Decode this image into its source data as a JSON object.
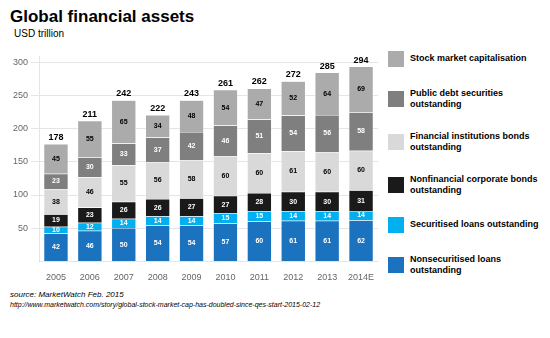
{
  "chart_data": {
    "type": "bar",
    "title": "Global financial assets",
    "subtitle": "USD trillion",
    "categories": [
      "2005",
      "2006",
      "2007",
      "2008",
      "2009",
      "2010",
      "2011",
      "2012",
      "2013",
      "2014E"
    ],
    "series": [
      {
        "name": "Nonsecuritised loans\noutstanding",
        "color": "#1B72BE",
        "values": [
          42,
          46,
          50,
          54,
          54,
          57,
          60,
          61,
          61,
          62
        ]
      },
      {
        "name": "Securitised loans outstanding",
        "color": "#00B0F0",
        "values": [
          10,
          12,
          14,
          14,
          14,
          15,
          15,
          14,
          14,
          14
        ]
      },
      {
        "name": "Nonfinancial corporate bonds\noutstanding",
        "color": "#1A1A1A",
        "values": [
          19,
          23,
          26,
          26,
          27,
          27,
          28,
          30,
          30,
          31
        ]
      },
      {
        "name": "Financial institutions bonds\noutstanding",
        "color": "#D9D9D9",
        "values": [
          38,
          46,
          55,
          56,
          58,
          60,
          60,
          61,
          60,
          60
        ]
      },
      {
        "name": "Public debt securities\noutstanding",
        "color": "#7F7F7F",
        "values": [
          23,
          30,
          33,
          37,
          42,
          46,
          51,
          54,
          56,
          58
        ]
      },
      {
        "name": "Stock market capitalisation",
        "color": "#ABABAB",
        "values": [
          45,
          55,
          65,
          34,
          48,
          54,
          47,
          52,
          64,
          69
        ]
      }
    ],
    "totals": [
      178,
      211,
      242,
      222,
      243,
      261,
      262,
      272,
      285,
      294
    ],
    "stacked": true,
    "data_labels": true,
    "ylim": [
      0,
      310
    ],
    "yticks": [
      50,
      100,
      150,
      200,
      250,
      300
    ],
    "grid": true,
    "legend": "right",
    "annotations": [
      "source: MarketWatch Feb. 2015",
      "http://www.marketwatch.com/story/global-stock-market-cap-has-doubled-since-qes-start-2015-02-12"
    ]
  }
}
